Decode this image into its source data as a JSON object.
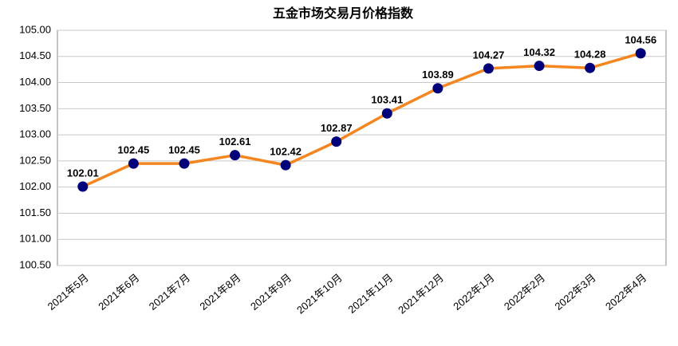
{
  "chart_data": {
    "type": "line",
    "title": "五金市场交易月价格指数",
    "categories": [
      "2021年5月",
      "2021年6月",
      "2021年7月",
      "2021年8月",
      "2021年9月",
      "2021年10月",
      "2021年11月",
      "2021年12月",
      "2022年1月",
      "2022年2月",
      "2022年3月",
      "2022年4月"
    ],
    "series": [
      {
        "color": "#f5861f",
        "marker_color": "#00007a",
        "values": [
          102.01,
          102.45,
          102.45,
          102.61,
          102.42,
          102.87,
          103.41,
          103.89,
          104.27,
          104.32,
          104.28,
          104.56
        ]
      }
    ],
    "ylim": [
      100.5,
      105
    ],
    "yticks": [
      {
        "value": 100.5,
        "label": "100.50"
      },
      {
        "value": 101,
        "label": "101.00"
      },
      {
        "value": 101.5,
        "label": "101.50"
      },
      {
        "value": 102,
        "label": "102.00"
      },
      {
        "value": 102.5,
        "label": "102.50"
      },
      {
        "value": 103,
        "label": "103.00"
      },
      {
        "value": 103.5,
        "label": "103.50"
      },
      {
        "value": 104,
        "label": "104.00"
      },
      {
        "value": 104.5,
        "label": "104.50"
      },
      {
        "value": 105,
        "label": "105.00"
      }
    ],
    "grid": true
  }
}
